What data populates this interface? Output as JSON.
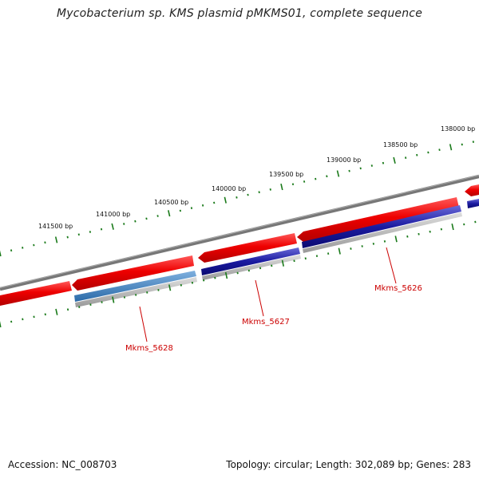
{
  "title": "Mycobacterium sp. KMS plasmid pMKMS01, complete sequence",
  "footer": {
    "accession": "Accession: NC_008703",
    "info": "Topology: circular; Length: 302,089 bp; Genes: 283"
  },
  "scale_labels": [
    "141500 bp",
    "141000 bp",
    "140500 bp",
    "140000 bp",
    "139500 bp",
    "139000 bp",
    "138500 bp",
    "138000 bp"
  ],
  "gene_labels": [
    "Mkms_5628",
    "Mkms_5627",
    "Mkms_5626"
  ],
  "colors": {
    "backbone": "#777777",
    "cds": "#ee0000",
    "gene_blue": "#1a1aa0",
    "gene_steel": "#3a7ab8",
    "gc_track": "#bbbbbb",
    "ticks": "#1a7a1a",
    "label": "#cc0000"
  }
}
